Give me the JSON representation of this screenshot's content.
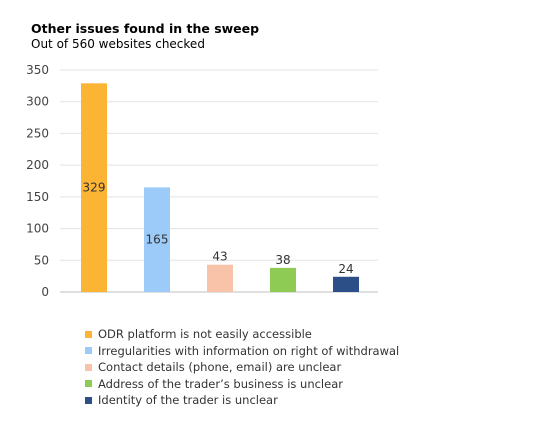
{
  "chart_data": {
    "type": "bar",
    "title": "Other issues found in the sweep",
    "subtitle": "Out of 560 websites checked",
    "categories": [
      "ODR platform is not easily accessible",
      "Irregularities with information on right of withdrawal",
      "Contact details (phone, email) are unclear",
      "Address of the trader’s business is unclear",
      "Identity of the trader is unclear"
    ],
    "values": [
      329,
      165,
      43,
      38,
      24
    ],
    "colors": [
      "#FBB433",
      "#9CCBF9",
      "#F8C3A8",
      "#8ECB55",
      "#2D4F88"
    ],
    "ylim": [
      0,
      350
    ],
    "yticks": [
      0,
      50,
      100,
      150,
      200,
      250,
      300,
      350
    ],
    "grid": true,
    "legend_position": "bottom"
  }
}
